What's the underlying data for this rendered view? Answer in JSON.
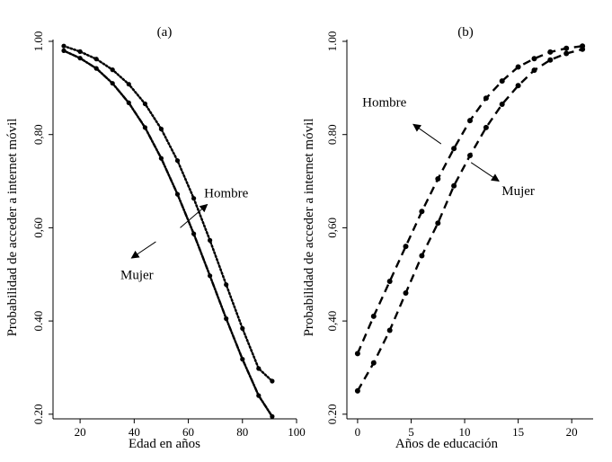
{
  "chart_data": [
    {
      "type": "line",
      "panel_label": "(a)",
      "xlabel": "Edad en años",
      "ylabel": "Probabilidad de acceder a internet móvil",
      "xlim": [
        10,
        100
      ],
      "ylim": [
        0.19,
        1.0
      ],
      "x_ticks": [
        20,
        40,
        60,
        80,
        100
      ],
      "y_ticks": [
        0.2,
        0.4,
        0.6,
        0.8,
        1.0
      ],
      "x_tick_labels": [
        "20",
        "40",
        "60",
        "80",
        "100"
      ],
      "y_tick_labels": [
        "0.20",
        "0.40",
        "0,60",
        "0,80",
        "1.00"
      ],
      "grid": false,
      "series": [
        {
          "name": "Hombre",
          "style": "dotted",
          "x": [
            14,
            20,
            26,
            32,
            38,
            44,
            50,
            56,
            62,
            68,
            74,
            80,
            86,
            91
          ],
          "y": [
            0.99,
            0.978,
            0.962,
            0.939,
            0.908,
            0.866,
            0.812,
            0.744,
            0.663,
            0.573,
            0.478,
            0.384,
            0.298,
            0.271
          ]
        },
        {
          "name": "Mujer",
          "style": "dash-dot",
          "x": [
            14,
            20,
            26,
            32,
            38,
            44,
            50,
            56,
            62,
            68,
            74,
            80,
            86,
            91
          ],
          "y": [
            0.98,
            0.964,
            0.942,
            0.91,
            0.868,
            0.815,
            0.749,
            0.672,
            0.587,
            0.497,
            0.405,
            0.318,
            0.24,
            0.195
          ]
        }
      ],
      "annotations": [
        {
          "text": "Hombre",
          "x": 74,
          "y": 0.665,
          "arrow_to": [
            67,
            0.65
          ],
          "arrow_from": [
            57,
            0.6
          ]
        },
        {
          "text": "Mujer",
          "x": 41,
          "y": 0.49,
          "arrow_to": [
            39,
            0.535
          ],
          "arrow_from": [
            48,
            0.57
          ]
        }
      ]
    },
    {
      "type": "line",
      "panel_label": "(b)",
      "xlabel": "Años de educación",
      "ylabel": "Probabilidad de acceder a internet móvil",
      "xlim": [
        -1,
        22
      ],
      "ylim": [
        0.19,
        1.0
      ],
      "x_ticks": [
        0,
        5,
        10,
        15,
        20
      ],
      "y_ticks": [
        0.2,
        0.4,
        0.6,
        0.8,
        1.0
      ],
      "x_tick_labels": [
        "0",
        "5",
        "10",
        "15",
        "20"
      ],
      "y_tick_labels": [
        "0.20",
        "0,40",
        "0,60",
        "0.80",
        "1.00"
      ],
      "grid": false,
      "series": [
        {
          "name": "Hombre",
          "style": "dashed",
          "x": [
            0,
            1.5,
            3,
            4.5,
            6,
            7.5,
            9,
            10.5,
            12,
            13.5,
            15,
            16.5,
            18,
            19.5,
            21
          ],
          "y": [
            0.33,
            0.41,
            0.485,
            0.56,
            0.635,
            0.705,
            0.77,
            0.83,
            0.878,
            0.915,
            0.945,
            0.963,
            0.977,
            0.985,
            0.99
          ]
        },
        {
          "name": "Mujer",
          "style": "dashed",
          "x": [
            0,
            1.5,
            3,
            4.5,
            6,
            7.5,
            9,
            10.5,
            12,
            13.5,
            15,
            16.5,
            18,
            19.5,
            21
          ],
          "y": [
            0.25,
            0.31,
            0.38,
            0.46,
            0.54,
            0.61,
            0.69,
            0.755,
            0.815,
            0.865,
            0.905,
            0.938,
            0.96,
            0.974,
            0.983
          ]
        }
      ],
      "annotations": [
        {
          "text": "Hombre",
          "x": 2.5,
          "y": 0.86,
          "arrow_to": [
            5.2,
            0.822
          ],
          "arrow_from": [
            7.8,
            0.78
          ]
        },
        {
          "text": "Mujer",
          "x": 15,
          "y": 0.67,
          "arrow_to": [
            13.2,
            0.7
          ],
          "arrow_from": [
            10.6,
            0.74
          ]
        }
      ]
    }
  ]
}
